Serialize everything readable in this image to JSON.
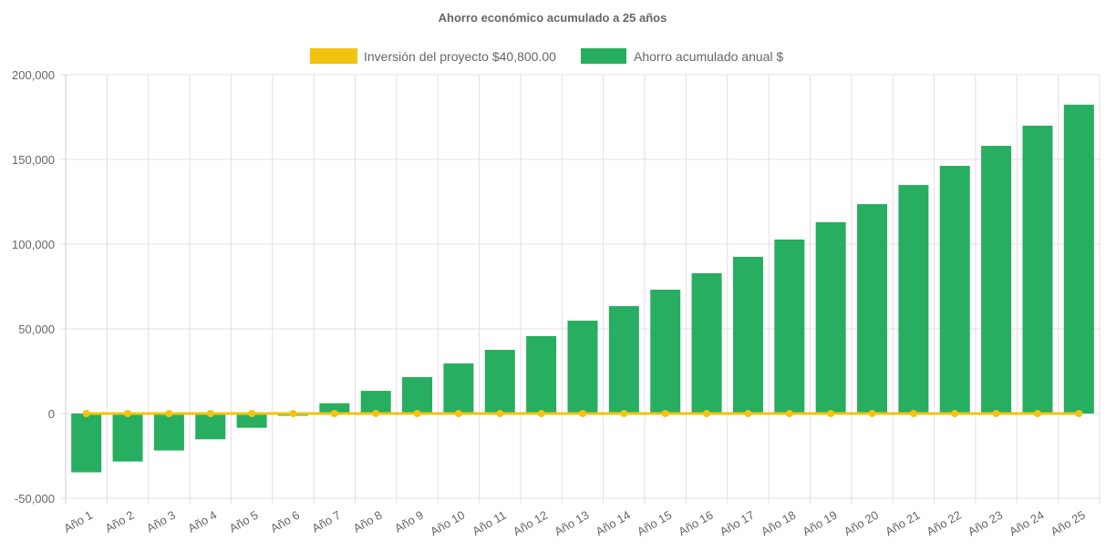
{
  "chart_data": {
    "type": "bar",
    "title": "Ahorro económico acumulado a 25 años",
    "categories": [
      "Año 1",
      "Año 2",
      "Año 3",
      "Año 4",
      "Año 5",
      "Año 6",
      "Año 7",
      "Año 8",
      "Año 9",
      "Año 10",
      "Año 11",
      "Año 12",
      "Año 13",
      "Año 14",
      "Año 15",
      "Año 16",
      "Año 17",
      "Año 18",
      "Año 19",
      "Año 20",
      "Año 21",
      "Año 22",
      "Año 23",
      "Año 24",
      "Año 25"
    ],
    "series": [
      {
        "name": "Inversión del proyecto $40,800.00",
        "type": "line",
        "color": "#f1c40f",
        "values": [
          0,
          0,
          0,
          0,
          0,
          0,
          0,
          0,
          0,
          0,
          0,
          0,
          0,
          0,
          0,
          0,
          0,
          0,
          0,
          0,
          0,
          0,
          0,
          0,
          0
        ]
      },
      {
        "name": "Ahorro acumulado anual $",
        "type": "bar",
        "color": "#27ae60",
        "values": [
          -34700,
          -28300,
          -21800,
          -15200,
          -8400,
          -1300,
          6100,
          13400,
          21500,
          29600,
          37600,
          45700,
          54800,
          63400,
          73100,
          82800,
          92500,
          102700,
          112900,
          123600,
          134900,
          146200,
          158000,
          169900,
          182300
        ]
      }
    ],
    "yticks": [
      "200,000",
      "150,000",
      "100,000",
      "50,000",
      "0",
      "-50,000"
    ],
    "ytick_values": [
      200000,
      150000,
      100000,
      50000,
      0,
      -50000
    ],
    "ylim": [
      -50000,
      200000
    ],
    "grid": true,
    "legend": "top"
  }
}
